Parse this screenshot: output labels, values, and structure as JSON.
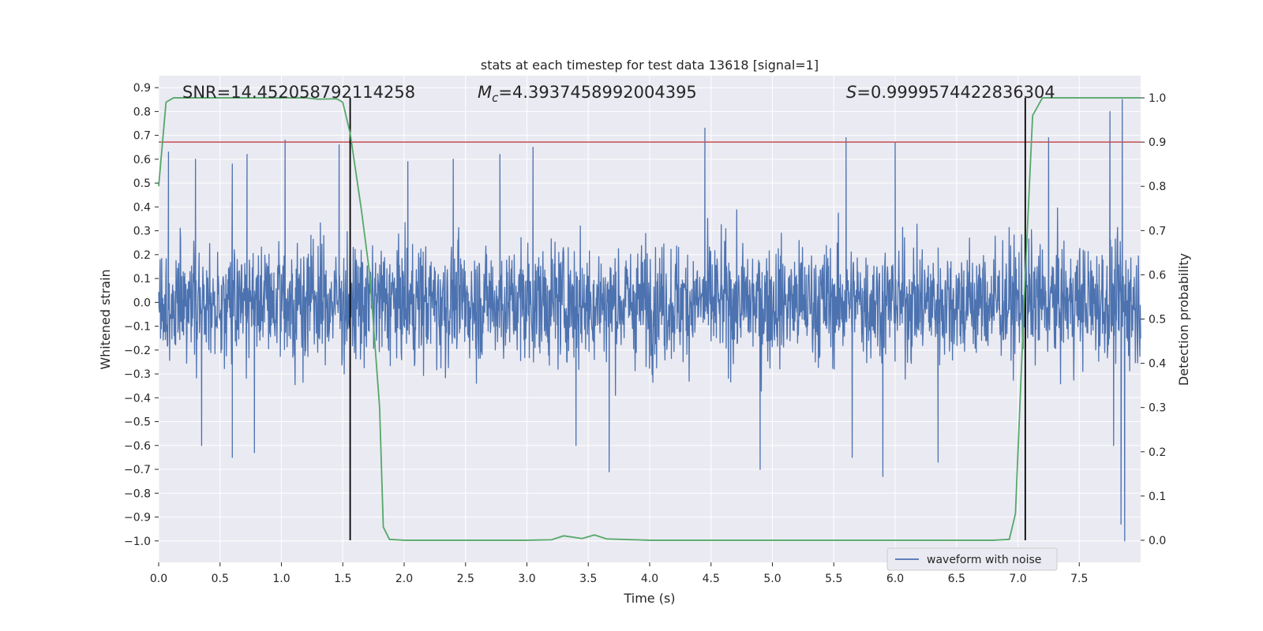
{
  "chart_data": {
    "type": "line",
    "title": "stats at each timestep for test data 13618 [signal=1]",
    "xlabel": "Time (s)",
    "ylabel": "Whitened strain",
    "y2label": "Detection probability",
    "xlim": [
      0.0,
      8.0
    ],
    "ylim": [
      -1.09,
      0.95
    ],
    "y2lim": [
      -0.05,
      1.05
    ],
    "xticks": [
      "0.0",
      "0.5",
      "1.0",
      "1.5",
      "2.0",
      "2.5",
      "3.0",
      "3.5",
      "4.0",
      "4.5",
      "5.0",
      "5.5",
      "6.0",
      "6.5",
      "7.0",
      "7.5"
    ],
    "yticks": [
      "0.9",
      "0.8",
      "0.7",
      "0.6",
      "0.5",
      "0.4",
      "0.3",
      "0.2",
      "0.1",
      "0.0",
      "−0.1",
      "−0.2",
      "−0.3",
      "−0.4",
      "−0.5",
      "−0.6",
      "−0.7",
      "−0.8",
      "−0.9",
      "−1.0"
    ],
    "y2ticks": [
      "1.0",
      "0.9",
      "0.8",
      "0.7",
      "0.6",
      "0.5",
      "0.4",
      "0.3",
      "0.2",
      "0.1",
      "0.0"
    ],
    "annotations": {
      "snr": {
        "label": "SNR",
        "value": "14.452058792114258"
      },
      "mc": {
        "label": "M",
        "sub": "c",
        "value": "4.3937458992004395"
      },
      "s": {
        "label": "S",
        "value": "0.9999574422836304"
      }
    },
    "threshold": 0.9,
    "vlines": [
      1.56,
      7.06
    ],
    "legend": {
      "label": "waveform with noise",
      "position": "lower-right"
    },
    "series": [
      {
        "name": "waveform with noise",
        "axis": "left",
        "color": "#4c72b0",
        "typical_amplitude": 0.3,
        "peaks": [
          [
            0.08,
            0.63
          ],
          [
            0.3,
            0.6
          ],
          [
            0.6,
            0.58
          ],
          [
            0.72,
            0.62
          ],
          [
            1.03,
            0.68
          ],
          [
            1.47,
            0.66
          ],
          [
            2.03,
            0.59
          ],
          [
            2.4,
            0.6
          ],
          [
            2.78,
            0.62
          ],
          [
            3.05,
            0.65
          ],
          [
            4.45,
            0.73
          ],
          [
            5.6,
            0.69
          ],
          [
            6.0,
            0.67
          ],
          [
            7.25,
            0.69
          ],
          [
            7.75,
            0.8
          ],
          [
            7.85,
            0.85
          ],
          [
            0.35,
            -0.6
          ],
          [
            0.6,
            -0.65
          ],
          [
            0.78,
            -0.63
          ],
          [
            3.4,
            -0.6
          ],
          [
            3.67,
            -0.71
          ],
          [
            4.9,
            -0.7
          ],
          [
            5.65,
            -0.65
          ],
          [
            5.9,
            -0.73
          ],
          [
            6.35,
            -0.67
          ],
          [
            7.78,
            -0.6
          ],
          [
            7.84,
            -0.93
          ],
          [
            7.87,
            -1.0
          ]
        ]
      },
      {
        "name": "Detection probability",
        "axis": "right",
        "color": "#55a868",
        "x": [
          0.0,
          0.06,
          0.12,
          0.4,
          0.8,
          1.2,
          1.3,
          1.45,
          1.5,
          1.56,
          1.65,
          1.72,
          1.8,
          1.83,
          1.88,
          2.0,
          2.3,
          2.6,
          3.0,
          3.2,
          3.3,
          3.4,
          3.45,
          3.55,
          3.65,
          4.0,
          5.0,
          6.0,
          6.8,
          6.93,
          6.98,
          7.06,
          7.12,
          7.2,
          7.3,
          7.5,
          8.0
        ],
        "y": [
          0.8,
          0.99,
          1.0,
          1.0,
          1.0,
          1.0,
          0.997,
          0.998,
          0.99,
          0.92,
          0.75,
          0.6,
          0.3,
          0.03,
          0.002,
          0.0,
          0.0,
          0.0,
          0.0,
          0.001,
          0.01,
          0.006,
          0.004,
          0.012,
          0.003,
          0.0,
          0.0,
          0.0,
          0.0,
          0.002,
          0.06,
          0.6,
          0.96,
          1.0,
          1.0,
          1.0,
          1.0
        ]
      }
    ]
  }
}
